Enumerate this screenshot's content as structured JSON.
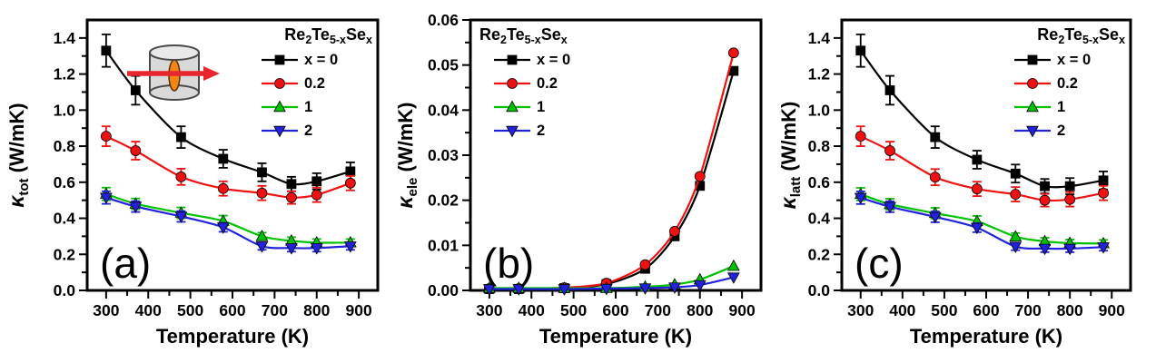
{
  "figure": {
    "background": "#ffffff"
  },
  "chart_data": [
    {
      "type": "line",
      "panel_label": "(a)",
      "xlabel": "Temperature (K)",
      "ylabel": {
        "symbol": "κ",
        "subscript": "tot",
        "units": " (W/mK)"
      },
      "xlim": [
        255,
        945
      ],
      "ylim": [
        0,
        1.5
      ],
      "xticks": [
        300,
        400,
        500,
        600,
        700,
        800,
        900
      ],
      "yticks": [
        0.0,
        0.2,
        0.4,
        0.6,
        0.8,
        1.0,
        1.2,
        1.4
      ],
      "ytick_decimals": 1,
      "x_minor_step": 50,
      "y_minor_step": 0.1,
      "x": [
        300,
        370,
        478,
        578,
        670,
        740,
        800,
        880
      ],
      "legend": {
        "position": "top-right",
        "title_parts": [
          [
            "Re",
            0
          ],
          [
            "2",
            1
          ],
          [
            "Te",
            0
          ],
          [
            "5-x",
            1
          ],
          [
            "Se",
            0
          ],
          [
            "x",
            1
          ]
        ],
        "entries": [
          "x = 0",
          "0.2",
          "1",
          "2"
        ]
      },
      "inset": {
        "name": "sample-cylinder-icon",
        "colors": {
          "body": "#d9d9d9",
          "outline": "#4a4a4a",
          "disk": "#f08519",
          "arrow": "#e8262d"
        }
      },
      "series": [
        {
          "name": "x = 0",
          "color": "#000000",
          "marker": "square",
          "values": [
            1.33,
            1.11,
            0.85,
            0.73,
            0.655,
            0.59,
            0.605,
            0.66
          ],
          "yerr": [
            0.09,
            0.08,
            0.06,
            0.05,
            0.05,
            0.04,
            0.045,
            0.05
          ]
        },
        {
          "name": "0.2",
          "color": "#ee1111",
          "marker": "circle",
          "values": [
            0.855,
            0.775,
            0.63,
            0.565,
            0.54,
            0.515,
            0.53,
            0.595
          ],
          "yerr": [
            0.055,
            0.05,
            0.045,
            0.04,
            0.04,
            0.035,
            0.04,
            0.04
          ]
        },
        {
          "name": "1",
          "color": "#00c200",
          "marker": "triangle-up",
          "values": [
            0.535,
            0.48,
            0.43,
            0.385,
            0.3,
            0.275,
            0.265,
            0.265
          ],
          "yerr": [
            0.035,
            0.03,
            0.03,
            0.03,
            0.02,
            0.02,
            0.02,
            0.02
          ]
        },
        {
          "name": "2",
          "color": "#2222dd",
          "marker": "triangle-down",
          "values": [
            0.515,
            0.465,
            0.41,
            0.35,
            0.245,
            0.235,
            0.235,
            0.245
          ],
          "yerr": [
            0.035,
            0.03,
            0.03,
            0.025,
            0.02,
            0.02,
            0.02,
            0.02
          ]
        }
      ]
    },
    {
      "type": "line",
      "panel_label": "(b)",
      "xlabel": "Temperature (K)",
      "ylabel": {
        "symbol": "κ",
        "subscript": "ele",
        "units": " (W/mK)"
      },
      "xlim": [
        255,
        945
      ],
      "ylim": [
        0,
        0.06
      ],
      "xticks": [
        300,
        400,
        500,
        600,
        700,
        800,
        900
      ],
      "yticks": [
        0.0,
        0.01,
        0.02,
        0.03,
        0.04,
        0.05,
        0.06
      ],
      "ytick_decimals": 2,
      "x_minor_step": 50,
      "y_minor_step": 0.005,
      "x": [
        300,
        370,
        478,
        578,
        670,
        740,
        800,
        880
      ],
      "legend": {
        "position": "top-left",
        "title_parts": [
          [
            "Re",
            0
          ],
          [
            "2",
            1
          ],
          [
            "Te",
            0
          ],
          [
            "5-x",
            1
          ],
          [
            "Se",
            0
          ],
          [
            "x",
            1
          ]
        ],
        "entries": [
          "x = 0",
          "0.2",
          "1",
          "2"
        ]
      },
      "series": [
        {
          "name": "x = 0",
          "color": "#000000",
          "marker": "square",
          "values": [
            0.0003,
            0.0003,
            0.0005,
            0.0014,
            0.0048,
            0.012,
            0.0232,
            0.0487
          ]
        },
        {
          "name": "0.2",
          "color": "#ee1111",
          "marker": "circle",
          "values": [
            0.0004,
            0.0004,
            0.0006,
            0.0016,
            0.0057,
            0.0131,
            0.0253,
            0.0527
          ]
        },
        {
          "name": "1",
          "color": "#00c200",
          "marker": "triangle-up",
          "values": [
            0.0005,
            0.0005,
            0.0005,
            0.0005,
            0.0008,
            0.0013,
            0.0024,
            0.0054
          ]
        },
        {
          "name": "2",
          "color": "#2222dd",
          "marker": "triangle-down",
          "values": [
            0.0003,
            0.0003,
            0.0003,
            0.0004,
            0.0005,
            0.0007,
            0.0012,
            0.0029
          ]
        }
      ]
    },
    {
      "type": "line",
      "panel_label": "(c)",
      "xlabel": "Temperature (K)",
      "ylabel": {
        "symbol": "κ",
        "subscript": "latt",
        "units": " (W/mK)"
      },
      "xlim": [
        255,
        945
      ],
      "ylim": [
        0,
        1.5
      ],
      "xticks": [
        300,
        400,
        500,
        600,
        700,
        800,
        900
      ],
      "yticks": [
        0.0,
        0.2,
        0.4,
        0.6,
        0.8,
        1.0,
        1.2,
        1.4
      ],
      "ytick_decimals": 1,
      "x_minor_step": 50,
      "y_minor_step": 0.1,
      "x": [
        300,
        370,
        478,
        578,
        670,
        740,
        800,
        880
      ],
      "legend": {
        "position": "top-right",
        "title_parts": [
          [
            "Re",
            0
          ],
          [
            "2",
            1
          ],
          [
            "Te",
            0
          ],
          [
            "5-x",
            1
          ],
          [
            "Se",
            0
          ],
          [
            "x",
            1
          ]
        ],
        "entries": [
          "x = 0",
          "0.2",
          "1",
          "2"
        ]
      },
      "series": [
        {
          "name": "x = 0",
          "color": "#000000",
          "marker": "square",
          "values": [
            1.33,
            1.11,
            0.85,
            0.725,
            0.648,
            0.578,
            0.578,
            0.61
          ],
          "yerr": [
            0.09,
            0.08,
            0.06,
            0.05,
            0.05,
            0.04,
            0.045,
            0.05
          ]
        },
        {
          "name": "0.2",
          "color": "#ee1111",
          "marker": "circle",
          "values": [
            0.855,
            0.775,
            0.628,
            0.563,
            0.533,
            0.5,
            0.505,
            0.54
          ],
          "yerr": [
            0.055,
            0.05,
            0.045,
            0.04,
            0.04,
            0.035,
            0.04,
            0.04
          ]
        },
        {
          "name": "1",
          "color": "#00c200",
          "marker": "triangle-up",
          "values": [
            0.534,
            0.478,
            0.428,
            0.383,
            0.298,
            0.272,
            0.262,
            0.26
          ],
          "yerr": [
            0.035,
            0.03,
            0.03,
            0.03,
            0.02,
            0.02,
            0.02,
            0.02
          ]
        },
        {
          "name": "2",
          "color": "#2222dd",
          "marker": "triangle-down",
          "values": [
            0.514,
            0.464,
            0.408,
            0.348,
            0.243,
            0.232,
            0.232,
            0.24
          ],
          "yerr": [
            0.035,
            0.03,
            0.03,
            0.025,
            0.02,
            0.02,
            0.02,
            0.02
          ]
        }
      ]
    }
  ]
}
